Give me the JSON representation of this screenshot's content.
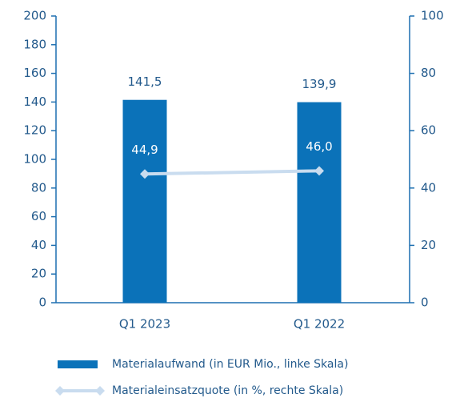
{
  "chart_data": {
    "type": "bar",
    "categories": [
      "Q1 2023",
      "Q1 2022"
    ],
    "series": [
      {
        "name": "Materialaufwand (in EUR Mio., linke Skala)",
        "type": "bar",
        "color": "#0b72b9",
        "values": [
          141.5,
          139.9
        ],
        "value_labels": [
          "141,5",
          "139,9"
        ]
      },
      {
        "name": "Materialeinsatzquote (in %, rechte Skala)",
        "type": "line",
        "axis": "y2",
        "color": "#c9dcef",
        "values": [
          44.9,
          46.0
        ],
        "value_labels": [
          "44,9",
          "46,0"
        ]
      }
    ],
    "ylim": [
      0,
      200
    ],
    "yticks": [
      0,
      20,
      40,
      60,
      80,
      100,
      120,
      140,
      160,
      180,
      200
    ],
    "y2lim": [
      0,
      100
    ],
    "y2ticks": [
      0,
      20,
      40,
      60,
      80,
      100
    ]
  }
}
